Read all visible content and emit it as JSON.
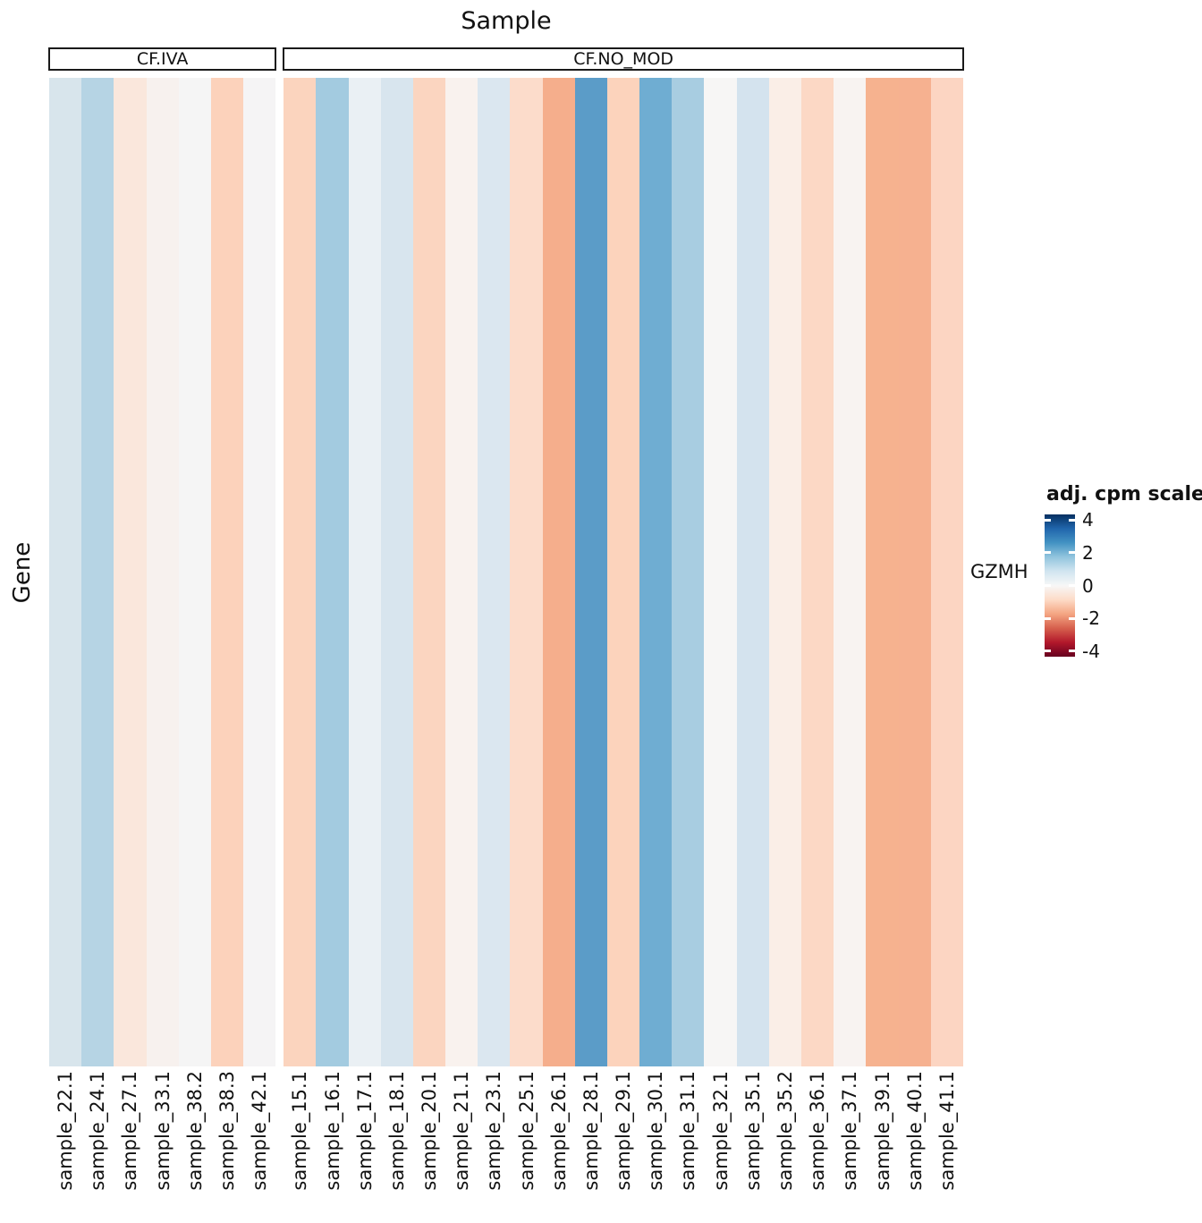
{
  "title": "Sample",
  "y_axis_label": "Gene",
  "legend": {
    "title": "adj. cpm scaled",
    "ticks": [
      "4",
      "2",
      "0",
      "-2",
      "-4"
    ],
    "tick_values": [
      4,
      2,
      0,
      -2,
      -4
    ],
    "limits": [
      -4.33,
      4.33
    ],
    "colormap": "RdBu",
    "gradient_bottom_to_top": [
      "#67001f",
      "#b2182b",
      "#d6604d",
      "#f4a582",
      "#fddbc7",
      "#f7f7f7",
      "#d1e5f0",
      "#92c5de",
      "#4393c3",
      "#2166ac",
      "#053061"
    ]
  },
  "chart_data": {
    "type": "heatmap",
    "title": "Sample",
    "xlabel": "Sample",
    "ylabel": "Gene",
    "rows": [
      "GZMH"
    ],
    "value_name": "adj. cpm scaled",
    "value_range": [
      -4,
      4
    ],
    "legend_position": "right",
    "facets": [
      {
        "label": "CF.IVA",
        "samples": [
          "sample_22.1",
          "sample_24.1",
          "sample_27.1",
          "sample_33.1",
          "sample_38.2",
          "sample_38.3",
          "sample_42.1"
        ],
        "values": [
          0.6,
          1.2,
          -0.4,
          -0.1,
          0.0,
          -0.8,
          0.0
        ],
        "colors": [
          "#d8e5ec",
          "#b6d4e4",
          "#fae7dc",
          "#f7f1ee",
          "#f5f5f5",
          "#fcd2bb",
          "#f5f4f5"
        ]
      },
      {
        "label": "CF.NO_MOD",
        "samples": [
          "sample_15.1",
          "sample_16.1",
          "sample_17.1",
          "sample_18.1",
          "sample_20.1",
          "sample_21.1",
          "sample_23.1",
          "sample_25.1",
          "sample_26.1",
          "sample_28.1",
          "sample_29.1",
          "sample_30.1",
          "sample_31.1",
          "sample_32.1",
          "sample_35.1",
          "sample_35.2",
          "sample_36.1",
          "sample_37.1",
          "sample_39.1",
          "sample_40.1",
          "sample_41.1"
        ],
        "values": [
          -0.8,
          1.5,
          0.3,
          0.6,
          -0.75,
          -0.1,
          0.5,
          -0.6,
          -1.6,
          2.7,
          -0.8,
          2.4,
          1.4,
          0.0,
          0.6,
          -0.2,
          -0.7,
          -0.1,
          -1.5,
          -1.5,
          -0.65
        ],
        "colors": [
          "#fbd4be",
          "#a3cbe0",
          "#eaf0f4",
          "#d8e5ee",
          "#fbd5c0",
          "#f9f2ee",
          "#dbe7f0",
          "#fcdccb",
          "#f5ae8c",
          "#5b9cc8",
          "#fcd3bc",
          "#6fadd2",
          "#a8cde1",
          "#f7f6f5",
          "#d4e3ee",
          "#faeee7",
          "#fcd8c5",
          "#f8f3f1",
          "#f6b28f",
          "#f6b190",
          "#fcd5c2"
        ]
      }
    ]
  }
}
